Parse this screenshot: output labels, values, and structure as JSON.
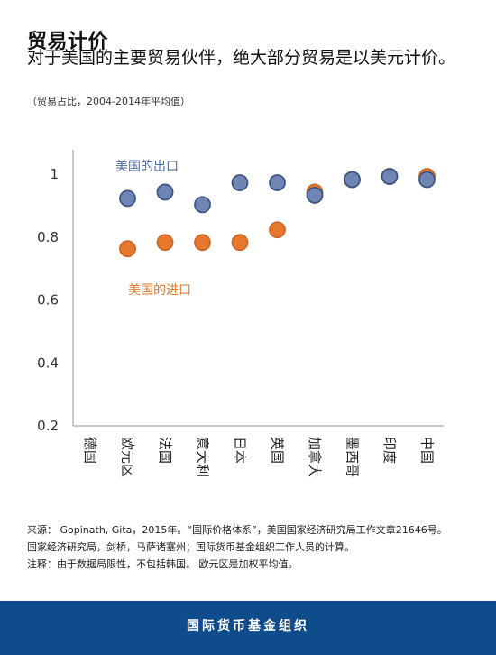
{
  "title": "贸易计价",
  "subtitle": "对于美国的主要贸易伙伴，绝大部分贸易是以美元计价。",
  "note": "（贸易占比，2004-2014年平均值）",
  "chart_data": {
    "type": "scatter",
    "categories": [
      "德国",
      "欧元区",
      "法国",
      "意大利",
      "日本",
      "英国",
      "加拿大",
      "墨西哥",
      "印度",
      "中国"
    ],
    "ylim": [
      0.2,
      1.0
    ],
    "yticks": [
      0.2,
      0.4,
      0.6,
      0.8,
      1.0
    ],
    "ytick_labels": [
      "0.2",
      "0.4",
      "0.6",
      "0.8",
      "1"
    ],
    "series": [
      {
        "name": "美国的进口",
        "color": "#e8772e",
        "stroke": "#c86a2a",
        "values": [
          null,
          0.76,
          0.78,
          0.78,
          0.78,
          0.82,
          0.94,
          0.98,
          0.99,
          0.99
        ]
      },
      {
        "name": "美国的出口",
        "color": "#6f86b4",
        "stroke": "#3f5584",
        "values": [
          null,
          0.92,
          0.94,
          0.9,
          0.97,
          0.97,
          0.93,
          0.98,
          0.99,
          0.98
        ]
      }
    ]
  },
  "footnotes": {
    "source": "来源： Gopinath, Gita，2015年。“国际价格体系”，美国国家经济研究局工作文章21646号。",
    "source2": "国家经济研究局，剑桥，马萨诸塞州；国际货币基金组织工作人员的计算。",
    "remark": "注释：由于数据局限性，不包括韩国。 欧元区是加权平均值。"
  },
  "footer": {
    "org": "国际货币基金组织"
  }
}
